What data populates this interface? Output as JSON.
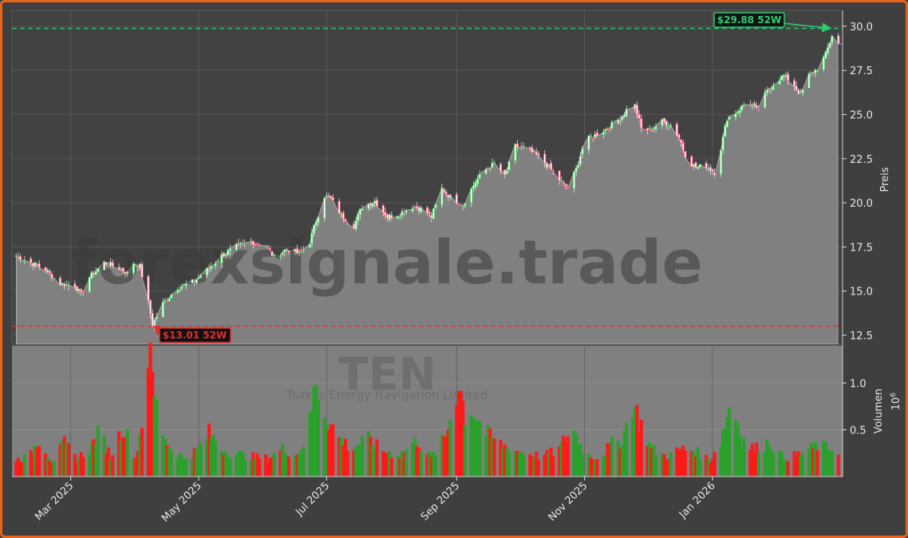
{
  "chart_data": {
    "type": "candlestick",
    "ticker": "TEN",
    "company": "Tsakos Energy Navigation Limited",
    "watermark": "forexsignale.trade",
    "y_label": "Preis",
    "volume_label": "Volumen",
    "volume_multiplier": "10",
    "volume_exponent": "6",
    "price_ylim": [
      12.0,
      30.9
    ],
    "price_ticks": [
      "12.5",
      "15.0",
      "17.5",
      "20.0",
      "22.5",
      "25.0",
      "27.5",
      "30.0"
    ],
    "volume_ylim": [
      0,
      1.4
    ],
    "volume_ticks": [
      "0.5",
      "1.0"
    ],
    "x_range": [
      "2025-02-01",
      "2026-03-04"
    ],
    "x_ticks": [
      {
        "date": "2025-03-01",
        "label": "Mar 2025"
      },
      {
        "date": "2025-05-01",
        "label": "May 2025"
      },
      {
        "date": "2025-07-01",
        "label": "Jul 2025"
      },
      {
        "date": "2025-09-01",
        "label": "Sep 2025"
      },
      {
        "date": "2025-11-01",
        "label": "Nov 2025"
      },
      {
        "date": "2026-01-01",
        "label": "Jan 2026"
      }
    ],
    "grid": true,
    "high_52w": {
      "value": 29.88,
      "label": "$29.88 52W",
      "date": "2026-02-27",
      "color": "#2ecc71"
    },
    "low_52w": {
      "value": 13.01,
      "label": "$13.01 52W",
      "date": "2025-04-09",
      "color": "#e03030"
    },
    "last_close": 29.0,
    "colors": {
      "up": "#2ca02c",
      "down": "#ff1a1a",
      "area": "#808080",
      "background": "#3f3f3f",
      "border": "#e8641c"
    },
    "price_path": [
      [
        "2025-02-03",
        17.0
      ],
      [
        "2025-02-10",
        16.6
      ],
      [
        "2025-02-17",
        16.2
      ],
      [
        "2025-02-24",
        15.4
      ],
      [
        "2025-03-03",
        15.3
      ],
      [
        "2025-03-06",
        14.8
      ],
      [
        "2025-03-10",
        15.8
      ],
      [
        "2025-03-17",
        16.6
      ],
      [
        "2025-03-24",
        16.3
      ],
      [
        "2025-03-28",
        16.0
      ],
      [
        "2025-03-31",
        16.6
      ],
      [
        "2025-04-03",
        16.4
      ],
      [
        "2025-04-07",
        14.3
      ],
      [
        "2025-04-09",
        13.1
      ],
      [
        "2025-04-14",
        14.3
      ],
      [
        "2025-04-21",
        15.2
      ],
      [
        "2025-04-28",
        15.5
      ],
      [
        "2025-05-05",
        16.2
      ],
      [
        "2025-05-12",
        17.0
      ],
      [
        "2025-05-19",
        17.5
      ],
      [
        "2025-05-26",
        17.8
      ],
      [
        "2025-06-02",
        17.6
      ],
      [
        "2025-06-06",
        16.9
      ],
      [
        "2025-06-12",
        17.4
      ],
      [
        "2025-06-18",
        17.1
      ],
      [
        "2025-06-23",
        17.8
      ],
      [
        "2025-06-26",
        19.0
      ],
      [
        "2025-06-30",
        20.4
      ],
      [
        "2025-07-03",
        20.2
      ],
      [
        "2025-07-08",
        19.3
      ],
      [
        "2025-07-14",
        18.7
      ],
      [
        "2025-07-18",
        19.8
      ],
      [
        "2025-07-24",
        20.1
      ],
      [
        "2025-07-30",
        19.2
      ],
      [
        "2025-08-05",
        19.4
      ],
      [
        "2025-08-11",
        19.8
      ],
      [
        "2025-08-16",
        19.6
      ],
      [
        "2025-08-20",
        19.2
      ],
      [
        "2025-08-25",
        20.8
      ],
      [
        "2025-08-29",
        20.3
      ],
      [
        "2025-09-04",
        19.9
      ],
      [
        "2025-09-10",
        21.2
      ],
      [
        "2025-09-15",
        21.9
      ],
      [
        "2025-09-19",
        22.2
      ],
      [
        "2025-09-24",
        21.5
      ],
      [
        "2025-09-29",
        23.2
      ],
      [
        "2025-10-03",
        23.1
      ],
      [
        "2025-10-09",
        22.7
      ],
      [
        "2025-10-15",
        22.0
      ],
      [
        "2025-10-20",
        21.3
      ],
      [
        "2025-10-24",
        20.8
      ],
      [
        "2025-10-28",
        21.9
      ],
      [
        "2025-11-01",
        23.5
      ],
      [
        "2025-11-07",
        23.9
      ],
      [
        "2025-11-13",
        24.3
      ],
      [
        "2025-11-18",
        24.8
      ],
      [
        "2025-11-22",
        25.4
      ],
      [
        "2025-11-25",
        25.5
      ],
      [
        "2025-11-28",
        24.2
      ],
      [
        "2025-12-02",
        24.1
      ],
      [
        "2025-12-08",
        24.6
      ],
      [
        "2025-12-12",
        24.4
      ],
      [
        "2025-12-16",
        23.7
      ],
      [
        "2025-12-20",
        22.4
      ],
      [
        "2025-12-24",
        22.0
      ],
      [
        "2025-12-29",
        22.1
      ],
      [
        "2026-01-02",
        21.7
      ],
      [
        "2026-01-05",
        23.1
      ],
      [
        "2026-01-08",
        24.8
      ],
      [
        "2026-01-13",
        25.2
      ],
      [
        "2026-01-18",
        25.8
      ],
      [
        "2026-01-22",
        25.2
      ],
      [
        "2026-01-27",
        26.3
      ],
      [
        "2026-01-31",
        26.9
      ],
      [
        "2026-02-04",
        27.2
      ],
      [
        "2026-02-08",
        26.8
      ],
      [
        "2026-02-12",
        26.1
      ],
      [
        "2026-02-16",
        27.2
      ],
      [
        "2026-02-20",
        27.6
      ],
      [
        "2026-02-24",
        28.4
      ],
      [
        "2026-02-27",
        29.5
      ],
      [
        "2026-03-02",
        29.0
      ]
    ],
    "volume_path": [
      [
        "2025-02-03",
        0.18
      ],
      [
        "2025-02-10",
        0.24
      ],
      [
        "2025-02-14",
        0.42
      ],
      [
        "2025-02-20",
        0.16
      ],
      [
        "2025-02-26",
        0.36
      ],
      [
        "2025-03-04",
        0.2
      ],
      [
        "2025-03-10",
        0.3
      ],
      [
        "2025-03-15",
        0.5
      ],
      [
        "2025-03-20",
        0.22
      ],
      [
        "2025-03-26",
        0.55
      ],
      [
        "2025-04-01",
        0.2
      ],
      [
        "2025-04-04",
        0.6
      ],
      [
        "2025-04-07",
        1.4
      ],
      [
        "2025-04-09",
        1.05
      ],
      [
        "2025-04-12",
        0.62
      ],
      [
        "2025-04-17",
        0.32
      ],
      [
        "2025-04-24",
        0.2
      ],
      [
        "2025-05-01",
        0.3
      ],
      [
        "2025-05-06",
        0.48
      ],
      [
        "2025-05-12",
        0.3
      ],
      [
        "2025-05-19",
        0.25
      ],
      [
        "2025-05-26",
        0.22
      ],
      [
        "2025-06-03",
        0.2
      ],
      [
        "2025-06-10",
        0.3
      ],
      [
        "2025-06-17",
        0.24
      ],
      [
        "2025-06-22",
        0.45
      ],
      [
        "2025-06-26",
        1.05
      ],
      [
        "2025-06-30",
        0.7
      ],
      [
        "2025-07-06",
        0.45
      ],
      [
        "2025-07-13",
        0.3
      ],
      [
        "2025-07-20",
        0.42
      ],
      [
        "2025-07-28",
        0.28
      ],
      [
        "2025-08-05",
        0.24
      ],
      [
        "2025-08-13",
        0.4
      ],
      [
        "2025-08-20",
        0.2
      ],
      [
        "2025-08-27",
        0.45
      ],
      [
        "2025-09-02",
        1.05
      ],
      [
        "2025-09-05",
        0.68
      ],
      [
        "2025-09-09",
        0.72
      ],
      [
        "2025-09-14",
        0.5
      ],
      [
        "2025-09-20",
        0.38
      ],
      [
        "2025-09-27",
        0.3
      ],
      [
        "2025-10-05",
        0.25
      ],
      [
        "2025-10-12",
        0.22
      ],
      [
        "2025-10-20",
        0.3
      ],
      [
        "2025-10-26",
        0.55
      ],
      [
        "2025-11-01",
        0.25
      ],
      [
        "2025-11-08",
        0.2
      ],
      [
        "2025-11-14",
        0.36
      ],
      [
        "2025-11-19",
        0.4
      ],
      [
        "2025-11-24",
        0.82
      ],
      [
        "2025-11-27",
        0.62
      ],
      [
        "2025-12-03",
        0.3
      ],
      [
        "2025-12-10",
        0.22
      ],
      [
        "2025-12-17",
        0.3
      ],
      [
        "2025-12-24",
        0.28
      ],
      [
        "2025-12-31",
        0.18
      ],
      [
        "2026-01-05",
        0.4
      ],
      [
        "2026-01-10",
        0.85
      ],
      [
        "2026-01-15",
        0.42
      ],
      [
        "2026-01-21",
        0.3
      ],
      [
        "2026-01-28",
        0.38
      ],
      [
        "2026-02-04",
        0.2
      ],
      [
        "2026-02-12",
        0.25
      ],
      [
        "2026-02-20",
        0.34
      ],
      [
        "2026-02-27",
        0.3
      ]
    ]
  }
}
